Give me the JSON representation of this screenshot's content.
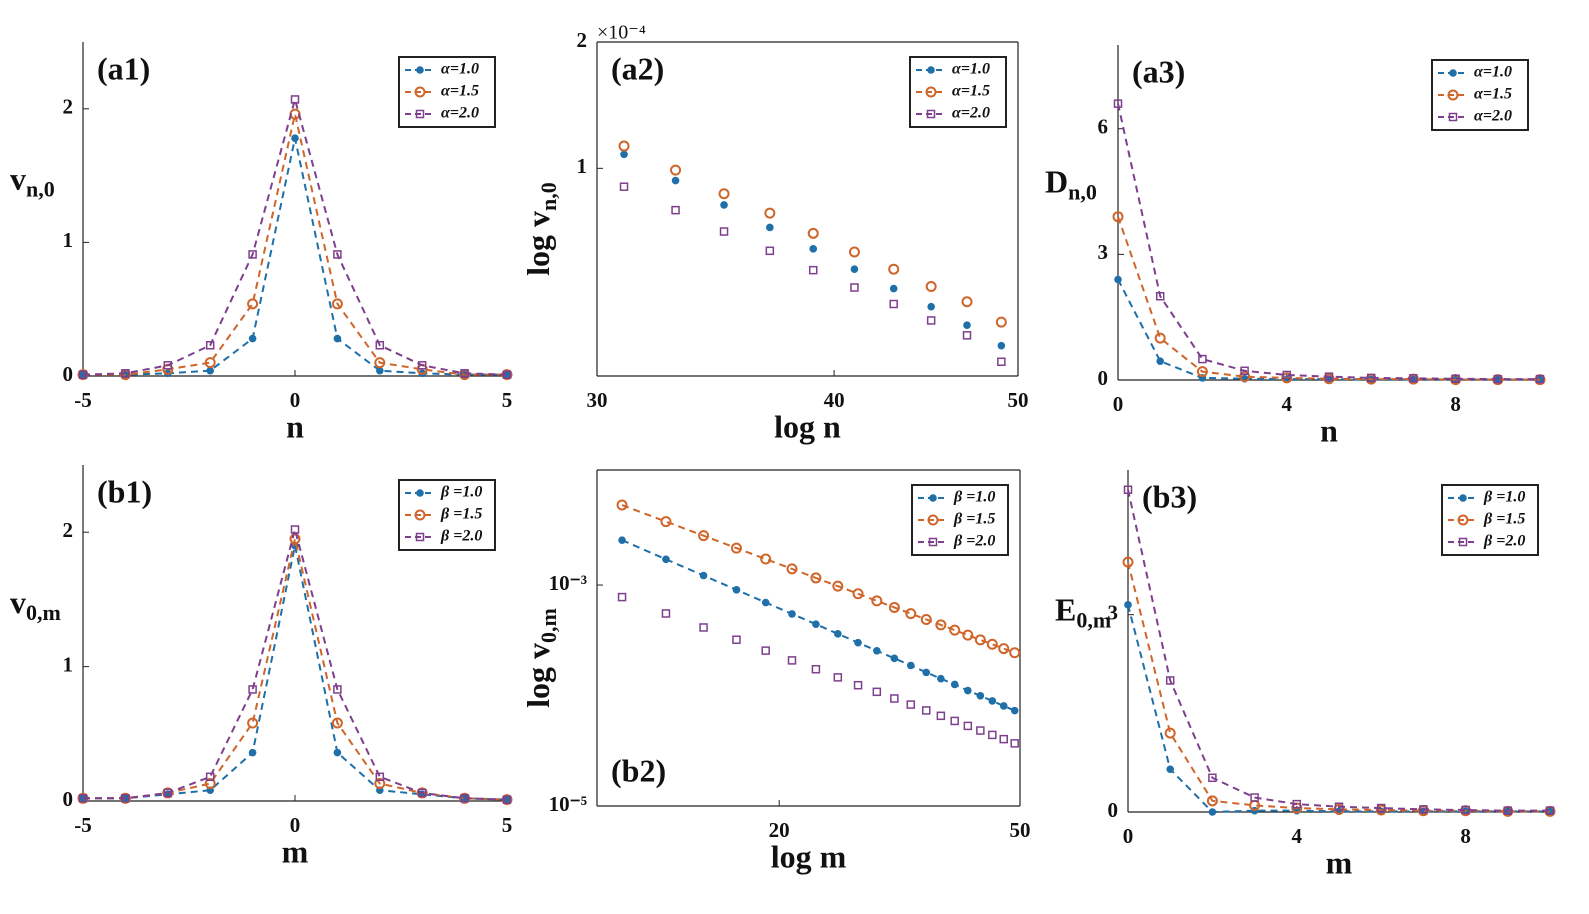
{
  "chart_data": [
    {
      "type": "line",
      "panel_label": "(a1)",
      "panel_label_position": "upper left",
      "xlabel": "n",
      "ylabel": "v",
      "ylabel_sub": "n,0",
      "x": [
        -5,
        -4,
        -3,
        -2,
        -1,
        0,
        1,
        2,
        3,
        4,
        5
      ],
      "xlim": [
        -5,
        5
      ],
      "xticks": [
        -5,
        0,
        5
      ],
      "ylim": [
        0,
        2.5
      ],
      "yticks": [
        0,
        1,
        2
      ],
      "legend": "upper right",
      "series": [
        {
          "name": "α=1.0",
          "color": "#1f6fa8",
          "marker": "filled-circle",
          "line": true,
          "values": [
            0.01,
            0.01,
            0.02,
            0.04,
            0.28,
            1.78,
            0.28,
            0.04,
            0.02,
            0.01,
            0.01
          ]
        },
        {
          "name": "α=1.5",
          "color": "#d0652a",
          "marker": "circle",
          "line": true,
          "values": [
            0.01,
            0.01,
            0.05,
            0.1,
            0.54,
            1.96,
            0.54,
            0.1,
            0.05,
            0.01,
            0.01
          ]
        },
        {
          "name": "α=2.0",
          "color": "#7d3f8e",
          "marker": "square",
          "line": true,
          "values": [
            0.01,
            0.02,
            0.08,
            0.23,
            0.91,
            2.07,
            0.91,
            0.23,
            0.08,
            0.02,
            0.01
          ]
        }
      ]
    },
    {
      "type": "scatter",
      "panel_label": "(a2)",
      "panel_label_position": "upper left",
      "xlabel": "log n",
      "ylabel": "log v",
      "ylabel_sub": "n,0",
      "exponent_label": "×10⁻⁴",
      "xlog": true,
      "ylog": true,
      "x": [
        31,
        33,
        35,
        37,
        39,
        41,
        43,
        45,
        47,
        49
      ],
      "xlim": [
        30,
        50
      ],
      "xticks": [
        30,
        40,
        50
      ],
      "ylim": [
        0.32,
        2
      ],
      "yticks": [
        1,
        2
      ],
      "legend": "upper right",
      "series": [
        {
          "name": "α=1.0",
          "color": "#1f6fa8",
          "marker": "filled-circle",
          "line": false,
          "values": [
            1.08,
            0.935,
            0.818,
            0.723,
            0.643,
            0.575,
            0.517,
            0.468,
            0.423,
            0.378
          ]
        },
        {
          "name": "α=1.5",
          "color": "#d0652a",
          "marker": "circle",
          "line": false,
          "values": [
            1.13,
            0.99,
            0.87,
            0.782,
            0.7,
            0.632,
            0.575,
            0.523,
            0.481,
            0.43
          ]
        },
        {
          "name": "α=2.0",
          "color": "#7d3f8e",
          "marker": "square",
          "line": false,
          "values": [
            0.904,
            0.795,
            0.707,
            0.636,
            0.572,
            0.52,
            0.475,
            0.434,
            0.4,
            0.346
          ]
        }
      ]
    },
    {
      "type": "line",
      "panel_label": "(a3)",
      "panel_label_position": "upper left",
      "xlabel": "n",
      "ylabel": "D",
      "ylabel_sub": "n,0",
      "x": [
        0,
        1,
        2,
        3,
        4,
        5,
        6,
        7,
        8,
        9,
        10
      ],
      "xlim": [
        0,
        10
      ],
      "xticks": [
        0,
        4,
        8
      ],
      "ylim": [
        0,
        8
      ],
      "yticks": [
        0,
        3,
        6
      ],
      "legend": "upper right",
      "series": [
        {
          "name": "α=1.0",
          "color": "#1f6fa8",
          "marker": "filled-circle",
          "line": true,
          "values": [
            2.4,
            0.45,
            0.05,
            0.03,
            0.02,
            0.02,
            0.01,
            0.01,
            0.01,
            0.01,
            0.01
          ]
        },
        {
          "name": "α=1.5",
          "color": "#d0652a",
          "marker": "circle",
          "line": true,
          "values": [
            3.9,
            1.0,
            0.2,
            0.08,
            0.05,
            0.03,
            0.02,
            0.02,
            0.01,
            0.01,
            0.01
          ]
        },
        {
          "name": "α=2.0",
          "color": "#7d3f8e",
          "marker": "square",
          "line": true,
          "values": [
            6.6,
            2.0,
            0.5,
            0.22,
            0.12,
            0.08,
            0.05,
            0.04,
            0.03,
            0.02,
            0.02
          ]
        }
      ]
    },
    {
      "type": "line",
      "panel_label": "(b1)",
      "panel_label_position": "upper left",
      "xlabel": "m",
      "ylabel": "v",
      "ylabel_sub": "0,m",
      "x": [
        -5,
        -4,
        -3,
        -2,
        -1,
        0,
        1,
        2,
        3,
        4,
        5
      ],
      "xlim": [
        -5,
        5
      ],
      "xticks": [
        -5,
        0,
        5
      ],
      "ylim": [
        0,
        2.5
      ],
      "yticks": [
        0,
        1,
        2
      ],
      "legend": "upper right",
      "series": [
        {
          "name": "β =1.0",
          "color": "#1f6fa8",
          "marker": "filled-circle",
          "line": true,
          "values": [
            0.02,
            0.02,
            0.05,
            0.08,
            0.36,
            1.9,
            0.36,
            0.08,
            0.05,
            0.02,
            0.01
          ]
        },
        {
          "name": "β =1.5",
          "color": "#d0652a",
          "marker": "circle",
          "line": true,
          "values": [
            0.02,
            0.02,
            0.06,
            0.13,
            0.58,
            1.95,
            0.58,
            0.13,
            0.06,
            0.02,
            0.01
          ]
        },
        {
          "name": "β =2.0",
          "color": "#7d3f8e",
          "marker": "square",
          "line": true,
          "values": [
            0.02,
            0.02,
            0.06,
            0.18,
            0.83,
            2.02,
            0.83,
            0.18,
            0.06,
            0.02,
            0.01
          ]
        }
      ]
    },
    {
      "type": "line",
      "panel_label": "(b2)",
      "panel_label_position": "lower left",
      "xlabel": "log m",
      "ylabel": "log v",
      "ylabel_sub": "0,m",
      "xlog": true,
      "ylog": true,
      "x": [
        11,
        13,
        15,
        17,
        19,
        21,
        23,
        25,
        27,
        29,
        31,
        33,
        35,
        37,
        39,
        41,
        43,
        45,
        47,
        49
      ],
      "xlim": [
        10,
        50
      ],
      "xticks": [
        20,
        50
      ],
      "ylim": [
        1e-05,
        0.011
      ],
      "yticks": [
        {
          "value": 0.001,
          "label": "10⁻³"
        },
        {
          "value": 1e-05,
          "label": "10⁻⁵"
        }
      ],
      "legend": "upper right",
      "series": [
        {
          "name": "β =1.0",
          "color": "#1f6fa8",
          "marker": "filled-circle",
          "line": true,
          "values": [
            0.00255,
            0.00171,
            0.00122,
            0.000905,
            0.000695,
            0.000548,
            0.000442,
            0.000362,
            0.000301,
            0.000254,
            0.000217,
            0.000187,
            0.000162,
            0.000142,
            0.000126,
            0.000111,
            9.95e-05,
            8.93e-05,
            8.05e-05,
            7.3e-05
          ]
        },
        {
          "name": "β =1.5",
          "color": "#d0652a",
          "marker": "circle",
          "line": true,
          "values": [
            0.0053,
            0.00375,
            0.0028,
            0.00216,
            0.00172,
            0.0014,
            0.00116,
            0.000977,
            0.000834,
            0.000719,
            0.000627,
            0.000551,
            0.000488,
            0.000436,
            0.000391,
            0.000352,
            0.000319,
            0.000291,
            0.000266,
            0.000244
          ]
        },
        {
          "name": "β =2.0",
          "color": "#7d3f8e",
          "marker": "square",
          "line": false,
          "values": [
            0.000778,
            0.000553,
            0.000413,
            0.00032,
            0.000255,
            0.000208,
            0.000173,
            0.000146,
            0.000124,
            0.000108,
            9.4e-05,
            8.28e-05,
            7.33e-05,
            6.55e-05,
            5.89e-05,
            5.31e-05,
            4.82e-05,
            4.4e-05,
            4.03e-05,
            3.69e-05
          ]
        }
      ]
    },
    {
      "type": "line",
      "panel_label": "(b3)",
      "panel_label_position": "upper left",
      "xlabel": "m",
      "ylabel": "E",
      "ylabel_sub": "0,m",
      "x": [
        0,
        1,
        2,
        3,
        4,
        5,
        6,
        7,
        8,
        9,
        10
      ],
      "xlim": [
        0,
        10
      ],
      "xticks": [
        0,
        4,
        8
      ],
      "ylim": [
        0,
        5.2
      ],
      "yticks": [
        0,
        3
      ],
      "legend": "upper right",
      "series": [
        {
          "name": "β =1.0",
          "color": "#1f6fa8",
          "marker": "filled-circle",
          "line": true,
          "values": [
            3.15,
            0.65,
            0,
            0.02,
            0.02,
            0.01,
            0.01,
            0.01,
            0.01,
            0.01,
            0.01
          ]
        },
        {
          "name": "β =1.5",
          "color": "#d0652a",
          "marker": "circle",
          "line": true,
          "values": [
            3.8,
            1.2,
            0.17,
            0.1,
            0.06,
            0.04,
            0.03,
            0.02,
            0.02,
            0.01,
            0.01
          ]
        },
        {
          "name": "β =2.0",
          "color": "#7d3f8e",
          "marker": "square",
          "line": true,
          "values": [
            4.9,
            2.0,
            0.52,
            0.22,
            0.12,
            0.08,
            0.06,
            0.04,
            0.03,
            0.02,
            0.02
          ]
        }
      ]
    }
  ]
}
